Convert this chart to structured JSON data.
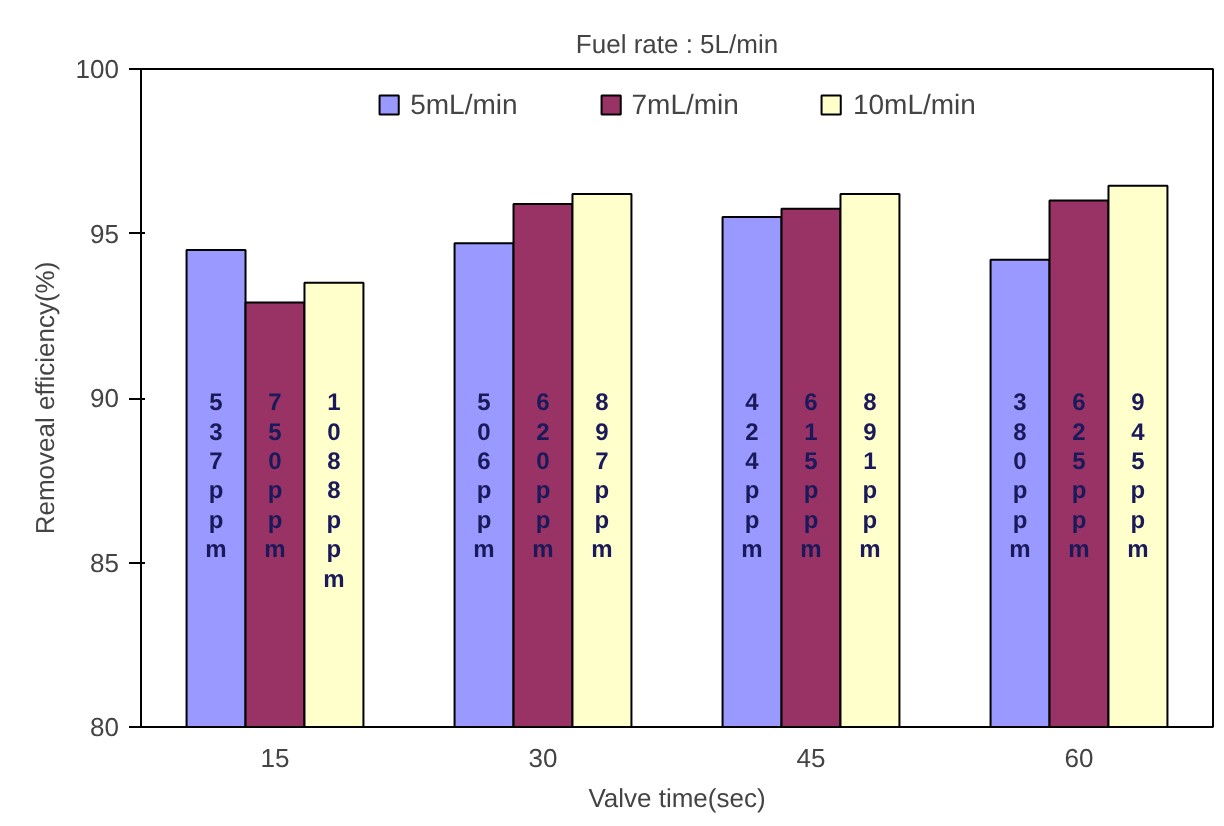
{
  "chart_data": {
    "type": "bar",
    "title": "Fuel rate : 5L/min",
    "xlabel": "Valve time(sec)",
    "ylabel": "Removeal efficiency(%)",
    "categories": [
      "15",
      "30",
      "45",
      "60"
    ],
    "series": [
      {
        "name": "5mL/min",
        "color": "#9999ff",
        "values": [
          94.5,
          94.7,
          95.5,
          94.2
        ]
      },
      {
        "name": "7mL/min",
        "color": "#993366",
        "values": [
          92.9,
          95.9,
          95.75,
          96.0
        ]
      },
      {
        "name": "10mL/min",
        "color": "#ffffcc",
        "values": [
          93.5,
          96.2,
          96.2,
          96.45
        ]
      }
    ],
    "ylim": [
      80,
      100
    ],
    "yticks": [
      80,
      85,
      90,
      95,
      100
    ],
    "grid": false,
    "legend": "top",
    "annotations": [
      "537ppm",
      "750ppm",
      "1088ppm",
      "506ppm",
      "620ppm",
      "897ppm",
      "424ppm",
      "615ppm",
      "891ppm",
      "380ppm",
      "625ppm",
      "945ppm"
    ]
  }
}
